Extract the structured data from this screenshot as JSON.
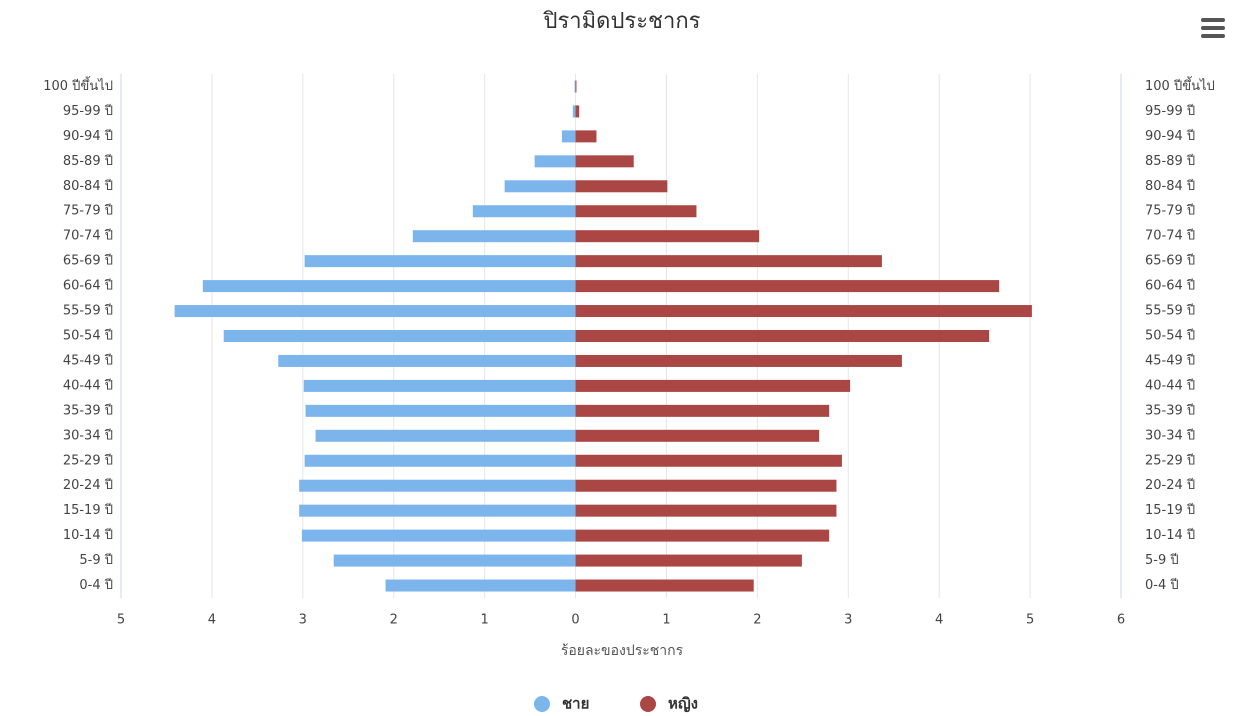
{
  "chart_data": {
    "type": "pyramid",
    "title": "ปิรามิดประชากร",
    "x_label": "ร้อยละของประชากร",
    "categories": [
      "100 ปีขึ้นไป",
      "95-99 ปี",
      "90-94 ปี",
      "85-89 ปี",
      "80-84 ปี",
      "75-79 ปี",
      "70-74 ปี",
      "65-69 ปี",
      "60-64 ปี",
      "55-59 ปี",
      "50-54 ปี",
      "45-49 ปี",
      "40-44 ปี",
      "35-39 ปี",
      "30-34 ปี",
      "25-29 ปี",
      "20-24 ปี",
      "15-19 ปี",
      "10-14 ปี",
      "5-9 ปี",
      "0-4 ปี"
    ],
    "series": [
      {
        "name": "ชาย",
        "color": "#7cb5ec",
        "values": [
          -0.01,
          -0.03,
          -0.15,
          -0.45,
          -0.78,
          -1.13,
          -1.79,
          -2.98,
          -4.1,
          -4.41,
          -3.87,
          -3.27,
          -2.99,
          -2.97,
          -2.86,
          -2.98,
          -3.04,
          -3.04,
          -3.01,
          -2.66,
          -2.09
        ]
      },
      {
        "name": "หญิง",
        "color": "#aa4643",
        "values": [
          0.01,
          0.04,
          0.23,
          0.64,
          1.01,
          1.33,
          2.02,
          3.37,
          4.66,
          5.02,
          4.55,
          3.59,
          3.02,
          2.79,
          2.68,
          2.93,
          2.87,
          2.87,
          2.79,
          2.49,
          1.96
        ]
      }
    ],
    "xlim": [
      -5,
      6
    ],
    "xticks": [
      {
        "value": -5,
        "label": "5"
      },
      {
        "value": -4,
        "label": "4"
      },
      {
        "value": -3,
        "label": "3"
      },
      {
        "value": -2,
        "label": "2"
      },
      {
        "value": -1,
        "label": "1"
      },
      0,
      1,
      2,
      3,
      4,
      5,
      6
    ],
    "grid": true
  }
}
